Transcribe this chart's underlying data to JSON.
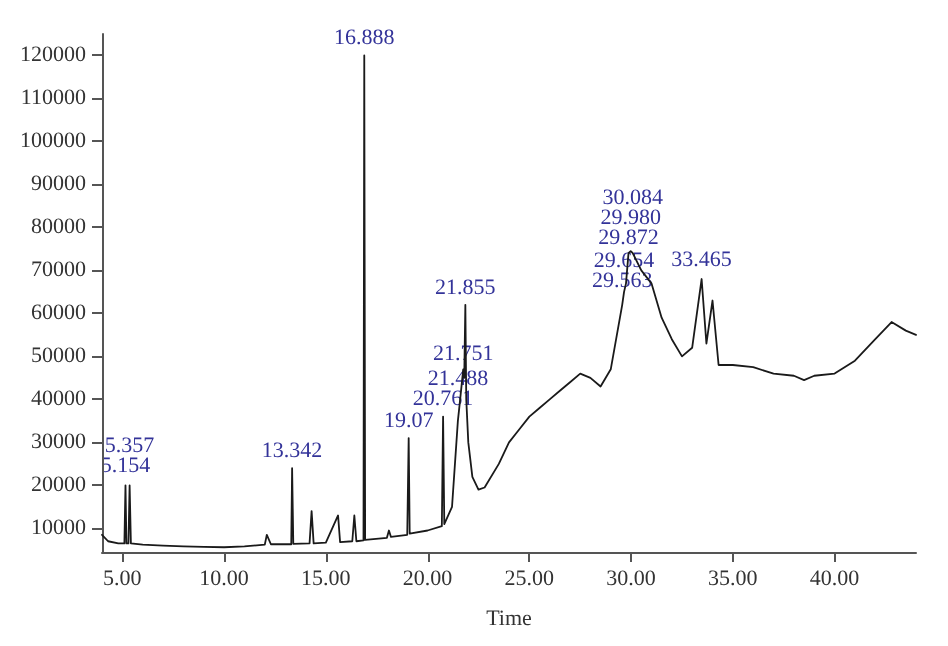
{
  "chart_data": {
    "type": "line",
    "xlabel": "Time",
    "xlim": [
      4,
      44
    ],
    "ylim": [
      4500,
      125000
    ],
    "xticks": [
      {
        "value": 5,
        "label": "5.00"
      },
      {
        "value": 10,
        "label": "10.00"
      },
      {
        "value": 15,
        "label": "15.00"
      },
      {
        "value": 20,
        "label": "20.00"
      },
      {
        "value": 25,
        "label": "25.00"
      },
      {
        "value": 30,
        "label": "30.00"
      },
      {
        "value": 35,
        "label": "35.00"
      },
      {
        "value": 40,
        "label": "40.00"
      }
    ],
    "yticks": [
      10000,
      20000,
      30000,
      40000,
      50000,
      60000,
      70000,
      80000,
      90000,
      100000,
      110000,
      120000
    ],
    "grid": false,
    "marker": "none",
    "line_style": "solid",
    "series": [
      {
        "color": "#1a1a1a",
        "x": [
          4.0,
          4.3,
          4.8,
          5.1,
          5.154,
          5.2,
          5.3,
          5.357,
          5.42,
          6.0,
          7.0,
          8.0,
          9.0,
          10.0,
          11.0,
          12.0,
          12.1,
          12.3,
          13.0,
          13.3,
          13.342,
          13.4,
          14.2,
          14.3,
          14.4,
          15.0,
          15.6,
          15.7,
          16.3,
          16.4,
          16.5,
          16.85,
          16.888,
          16.93,
          18.0,
          18.1,
          18.2,
          19.0,
          19.07,
          19.12,
          20.0,
          20.7,
          20.761,
          20.82,
          21.2,
          21.488,
          21.6,
          21.751,
          21.8,
          21.855,
          21.9,
          22.0,
          22.2,
          22.5,
          22.8,
          23.5,
          24.0,
          24.5,
          25.0,
          25.5,
          26.0,
          26.5,
          27.0,
          27.5,
          28.0,
          28.5,
          29.0,
          29.563,
          29.654,
          29.75,
          29.872,
          29.98,
          30.084,
          30.5,
          31.0,
          31.5,
          32.0,
          32.5,
          33.0,
          33.465,
          33.7,
          34.0,
          34.3,
          35.0,
          36.0,
          37.0,
          38.0,
          38.5,
          39.0,
          40.0,
          41.0,
          42.0,
          42.8,
          43.5,
          44.0
        ],
        "values": [
          8500,
          7000,
          6500,
          6500,
          20000,
          6500,
          6500,
          20000,
          6500,
          6200,
          6000,
          5800,
          5700,
          5600,
          5800,
          6200,
          8500,
          6300,
          6300,
          6300,
          24000,
          6400,
          6500,
          14000,
          6500,
          6700,
          13000,
          6800,
          7000,
          13000,
          7000,
          7200,
          120000,
          7300,
          7800,
          9500,
          8000,
          8500,
          31000,
          8800,
          9500,
          10500,
          36000,
          11000,
          15000,
          35000,
          40000,
          47000,
          45000,
          62000,
          40000,
          30000,
          22000,
          19000,
          19500,
          25000,
          30000,
          33000,
          36000,
          38000,
          40000,
          42000,
          44000,
          46000,
          45000,
          43000,
          47000,
          62000,
          65000,
          67000,
          74000,
          74500,
          74000,
          70000,
          67000,
          59000,
          54000,
          50000,
          52000,
          68000,
          53000,
          63000,
          48000,
          48000,
          47500,
          46000,
          45500,
          44500,
          45500,
          46000,
          49000,
          54000,
          58000,
          56000,
          55000
        ]
      }
    ],
    "annotations": [
      {
        "text": "5.154",
        "x": 5.154,
        "y": 21000
      },
      {
        "text": "5.357",
        "x": 5.357,
        "y": 17000
      },
      {
        "text": "13.342",
        "x": 13.342,
        "y": 24500
      },
      {
        "text": "16.888",
        "x": 16.888,
        "y": 120500
      },
      {
        "text": "19.07",
        "x": 19.07,
        "y": 31500
      },
      {
        "text": "20.761",
        "x": 20.761,
        "y": 36500
      },
      {
        "text": "21.488",
        "x": 21.488,
        "y": 29500
      },
      {
        "text": "21.751",
        "x": 21.751,
        "y": 47000
      },
      {
        "text": "21.855",
        "x": 21.855,
        "y": 62500
      },
      {
        "text": "29.563",
        "x": 29.563,
        "y": 64000
      },
      {
        "text": "29.654",
        "x": 29.654,
        "y": 67500
      },
      {
        "text": "29.872",
        "x": 29.872,
        "y": 74000
      },
      {
        "text": "29.980",
        "x": 29.98,
        "y": 74500
      },
      {
        "text": "30.084",
        "x": 30.084,
        "y": 74000
      },
      {
        "text": "33.465",
        "x": 33.465,
        "y": 69000
      }
    ]
  }
}
